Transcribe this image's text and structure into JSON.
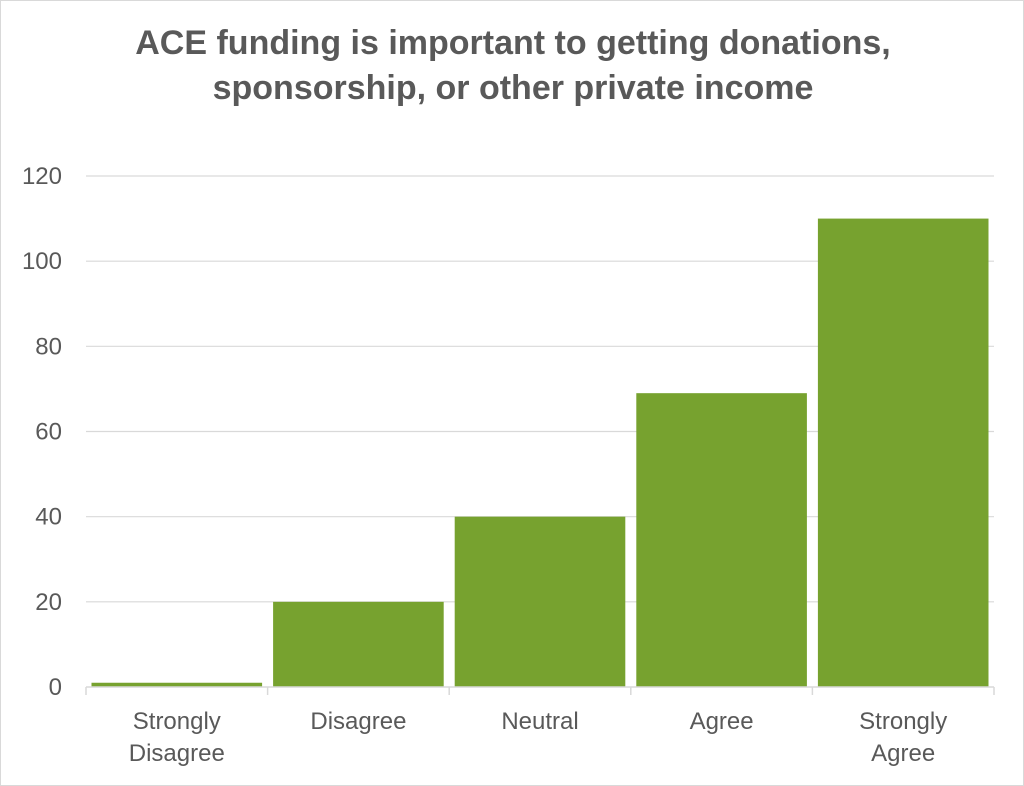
{
  "chart_data": {
    "type": "bar",
    "title": "ACE funding is important to getting donations, sponsorship, or other private income",
    "categories": [
      [
        "Strongly",
        "Disagree"
      ],
      [
        "Disagree"
      ],
      [
        "Neutral"
      ],
      [
        "Agree"
      ],
      [
        "Strongly",
        "Agree"
      ]
    ],
    "series": [
      {
        "values": [
          1,
          20,
          40,
          69,
          110
        ],
        "color": "#77a22f"
      }
    ],
    "xlabel": "",
    "ylabel": "",
    "ylim": [
      0,
      120
    ],
    "yticks": [
      0,
      20,
      40,
      60,
      80,
      100,
      120
    ],
    "grid": true,
    "legend": "none"
  }
}
